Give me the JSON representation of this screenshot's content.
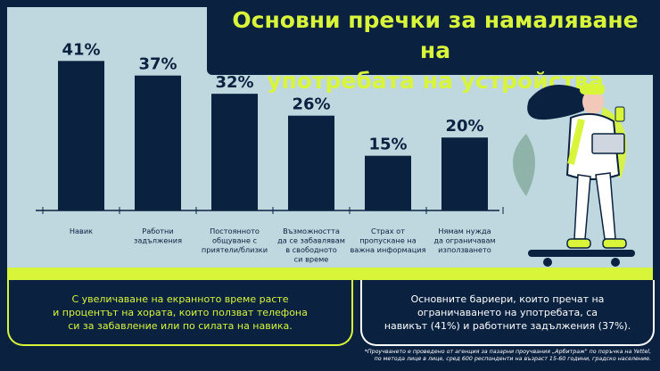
{
  "title": {
    "line1": "Основни пречки за намаляване на",
    "line2": "употребата на устройства"
  },
  "chart_data": {
    "type": "bar",
    "categories": [
      [
        "Навик"
      ],
      [
        "Работни",
        "задължения"
      ],
      [
        "Постоянното",
        "общуване с",
        "приятели/близки"
      ],
      [
        "Възможността",
        "да се забавлявам",
        "в свободното",
        "си време"
      ],
      [
        "Страх от",
        "пропускане на",
        "важна информация"
      ],
      [
        "Нямам нужда",
        "да ограничавам",
        "използването"
      ]
    ],
    "values": [
      41,
      37,
      32,
      26,
      15,
      20
    ],
    "value_labels": [
      "41%",
      "37%",
      "32%",
      "26%",
      "15%",
      "20%"
    ],
    "ylim": [
      0,
      45
    ],
    "grid": false,
    "bar_color": "#0a2140"
  },
  "boxes": {
    "left": {
      "lines": [
        "С увеличаване на екранното време расте",
        "и процентът на хората, които ползват телефона",
        "си за забавление или по силата на навика."
      ]
    },
    "right": {
      "lines": [
        "Основните бариери, които пречат на",
        "ограничаването на употребата, са",
        "навикът (41%) и работните задължения (37%)."
      ]
    }
  },
  "footnote": {
    "line1": "*Проучването е проведено от агенция за пазарни проучвания „Арбитраж\" по поръчка на Yettel,",
    "line2": "по метода лице в лице, сред 600 респонденти на възраст 15-60 години, градско население."
  },
  "colors": {
    "navy": "#0a2140",
    "lime": "#d8f53a",
    "panel": "#bfd7df"
  },
  "illustration": {
    "subject": "woman-on-skateboard-with-laptop-and-coffee"
  }
}
